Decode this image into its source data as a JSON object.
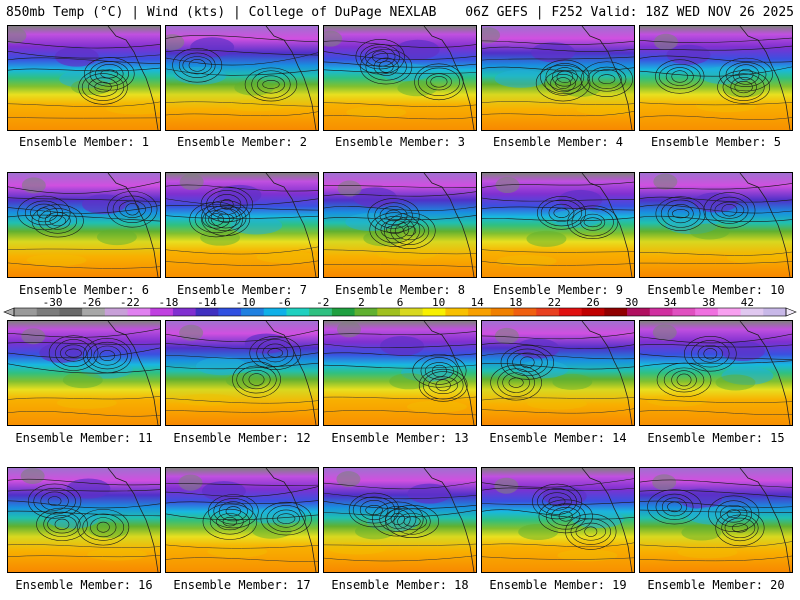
{
  "header": {
    "left": "850mb Temp (°C) | Wind (kts) | College of DuPage NEXLAB",
    "right": "06Z GEFS | F252 Valid: 18Z WED NOV 26 2025"
  },
  "members": [
    {
      "label": "Ensemble Member: 1"
    },
    {
      "label": "Ensemble Member: 2"
    },
    {
      "label": "Ensemble Member: 3"
    },
    {
      "label": "Ensemble Member: 4"
    },
    {
      "label": "Ensemble Member: 5"
    },
    {
      "label": "Ensemble Member: 6"
    },
    {
      "label": "Ensemble Member: 7"
    },
    {
      "label": "Ensemble Member: 8"
    },
    {
      "label": "Ensemble Member: 9"
    },
    {
      "label": "Ensemble Member: 10"
    },
    {
      "label": "Ensemble Member: 11"
    },
    {
      "label": "Ensemble Member: 12"
    },
    {
      "label": "Ensemble Member: 13"
    },
    {
      "label": "Ensemble Member: 14"
    },
    {
      "label": "Ensemble Member: 15"
    },
    {
      "label": "Ensemble Member: 16"
    },
    {
      "label": "Ensemble Member: 17"
    },
    {
      "label": "Ensemble Member: 18"
    },
    {
      "label": "Ensemble Member: 19"
    },
    {
      "label": "Ensemble Member: 20"
    }
  ],
  "colorbar": {
    "ticks": [
      "-30",
      "-26",
      "-22",
      "-18",
      "-14",
      "-10",
      "-6",
      "-2",
      "2",
      "6",
      "10",
      "14",
      "18",
      "22",
      "26",
      "30",
      "34",
      "38",
      "42"
    ],
    "colors": [
      "#9a9a9a",
      "#7c7c7c",
      "#6a6a6a",
      "#a8a8a8",
      "#c8a0d8",
      "#e080f0",
      "#c040e0",
      "#8030d0",
      "#4030c0",
      "#3050e0",
      "#2080e0",
      "#10b0e8",
      "#20d0c0",
      "#30c080",
      "#20a040",
      "#60b030",
      "#a0c020",
      "#d8d820",
      "#f8f000",
      "#f8c000",
      "#f8a000",
      "#f08000",
      "#f06010",
      "#e84020",
      "#e01010",
      "#c00000",
      "#900000",
      "#b01060",
      "#d030a0",
      "#e050c0",
      "#f070e0",
      "#f8a0f0",
      "#e0c8f0",
      "#c8b8e8"
    ]
  }
}
